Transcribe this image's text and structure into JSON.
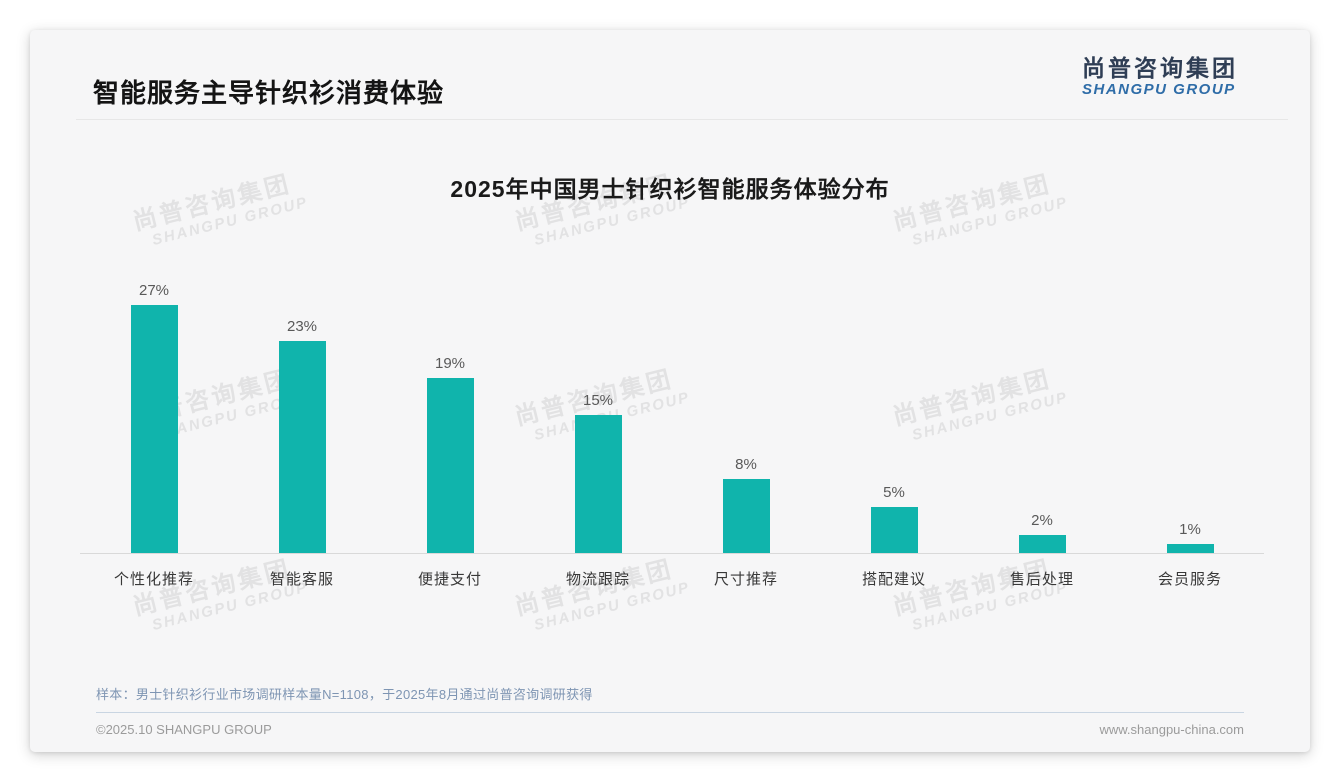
{
  "slide": {
    "header": {
      "title": "智能服务主导针织衫消费体验",
      "logo": {
        "cn": "尚普咨询集团",
        "en": "SHANGPU GROUP"
      }
    },
    "watermark": {
      "cn": "尚普咨询集团",
      "en": "SHANGPU GROUP"
    },
    "footnote": "样本：男士针织衫行业市场调研样本量N=1108，于2025年8月通过尚普咨询调研获得",
    "footer": {
      "left": "©2025.10 SHANGPU GROUP",
      "right": "www.shangpu-china.com"
    }
  },
  "chart_data": {
    "type": "bar",
    "title": "2025年中国男士针织衫智能服务体验分布",
    "categories": [
      "个性化推荐",
      "智能客服",
      "便捷支付",
      "物流跟踪",
      "尺寸推荐",
      "搭配建议",
      "售后处理",
      "会员服务"
    ],
    "values": [
      27,
      23,
      19,
      15,
      8,
      5,
      2,
      1
    ],
    "unit": "%",
    "data_labels": [
      "27%",
      "23%",
      "19%",
      "15%",
      "8%",
      "5%",
      "2%",
      "1%"
    ],
    "ylim": [
      0,
      30
    ],
    "grid": false,
    "legend": "none",
    "bar_color": "#10b4ac",
    "value_label_color": "#595959",
    "category_label_color": "#383838"
  },
  "colors": {
    "slide_background": "#f6f6f7",
    "bar": "#10b4ac",
    "logo_cn": "#2f3e55",
    "logo_en": "#2f6da8",
    "footnote_text": "#7e95b3",
    "footer_text": "#9b9b9b",
    "watermark": "#e2e2e3",
    "baseline": "#d9d9d9"
  }
}
